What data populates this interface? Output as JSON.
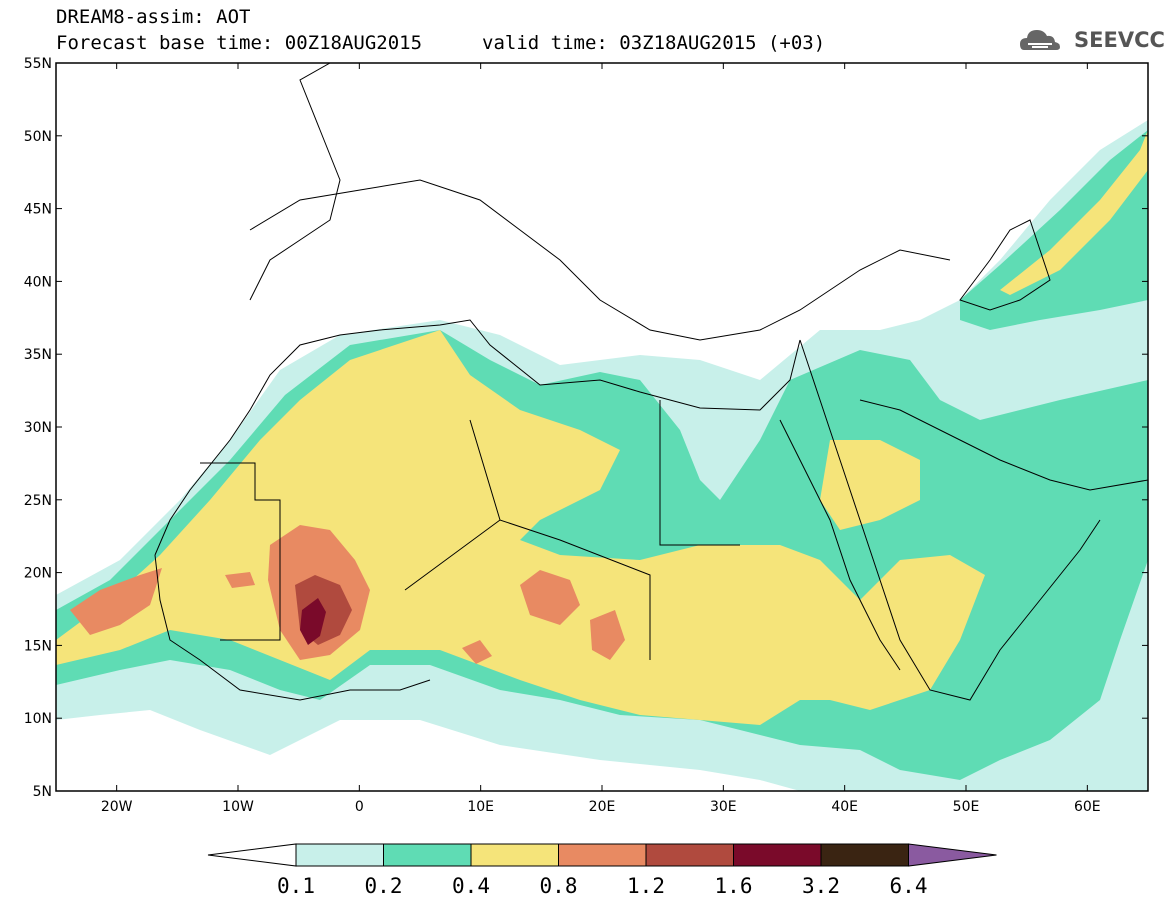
{
  "title": {
    "line1": "DREAM8-assim: AOT",
    "line2": "Forecast base time: 00Z18AUG2015",
    "valid": "valid time: 03Z18AUG2015 (+03)"
  },
  "logo": {
    "text": "SEEVCCC",
    "icon": "cloud-icon"
  },
  "map": {
    "lon_range": [
      -25,
      65
    ],
    "lat_range": [
      5,
      55
    ],
    "lat_ticks": [
      "5N",
      "10N",
      "15N",
      "20N",
      "25N",
      "30N",
      "35N",
      "40N",
      "45N",
      "50N",
      "55N"
    ],
    "lon_ticks": [
      "20W",
      "10W",
      "0",
      "10E",
      "20E",
      "30E",
      "40E",
      "50E",
      "60E"
    ],
    "variable": "AOT"
  },
  "colorbar": {
    "labels": [
      "0.1",
      "0.2",
      "0.4",
      "0.8",
      "1.2",
      "1.6",
      "3.2",
      "6.4"
    ],
    "colors": [
      "#ffffff",
      "#c8f0ea",
      "#5fdcb4",
      "#f5e47a",
      "#e88a62",
      "#b04a3e",
      "#7a0a2a",
      "#3a2412",
      "#8a5aa0"
    ]
  },
  "colors": {
    "level1": "#c8f0ea",
    "level2": "#5fdcb4",
    "level3": "#f5e47a",
    "level4": "#e88a62",
    "level5": "#b04a3e",
    "level6": "#7a0a2a"
  }
}
